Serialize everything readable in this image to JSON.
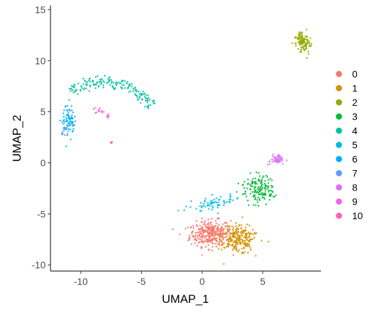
{
  "chart_data": {
    "type": "scatter",
    "title": "",
    "xlabel": "UMAP_1",
    "ylabel": "UMAP_2",
    "xlim": [
      -12.5,
      9.8
    ],
    "ylim": [
      -10.6,
      15.4
    ],
    "x_ticks": [
      -10,
      -5,
      0,
      5
    ],
    "y_ticks": [
      -10,
      -5,
      0,
      5,
      10,
      15
    ],
    "grid": false,
    "legend_position": "right",
    "point_style": "small plus marks",
    "series": [
      {
        "name": "0",
        "color": "#F8766D",
        "n": 320,
        "shape": "ellipse",
        "center": [
          0.7,
          -6.9
        ],
        "spread": [
          1.6,
          1.1
        ],
        "angle": 0.1
      },
      {
        "name": "1",
        "color": "#D39200",
        "n": 240,
        "shape": "ellipse",
        "center": [
          3.0,
          -7.5
        ],
        "spread": [
          1.4,
          1.2
        ],
        "angle": -0.3
      },
      {
        "name": "2",
        "color": "#93AA00",
        "n": 130,
        "shape": "ellipse",
        "center": [
          8.3,
          11.8
        ],
        "spread": [
          0.55,
          1.0
        ],
        "angle": 0.25
      },
      {
        "name": "3",
        "color": "#00BA38",
        "n": 150,
        "shape": "ellipse",
        "center": [
          4.6,
          -2.6
        ],
        "spread": [
          1.1,
          1.3
        ],
        "angle": 0.6
      },
      {
        "name": "4",
        "color": "#00C19F",
        "n": 170,
        "shape": "arc",
        "center": [
          -8.2,
          3.3
        ],
        "radius": 4.6,
        "theta": [
          0.45,
          2.2
        ],
        "width": 0.55
      },
      {
        "name": "5",
        "color": "#00B9E3",
        "n": 70,
        "shape": "ellipse",
        "center": [
          0.9,
          -4.0
        ],
        "spread": [
          1.7,
          0.6
        ],
        "angle": 0.15
      },
      {
        "name": "6",
        "color": "#00ADFA",
        "n": 80,
        "shape": "ellipse",
        "center": [
          -11.0,
          4.3
        ],
        "spread": [
          0.45,
          1.3
        ],
        "angle": 0.0
      },
      {
        "name": "7",
        "color": "#619CFF",
        "n": 10,
        "shape": "ellipse",
        "center": [
          -11.3,
          3.2
        ],
        "spread": [
          0.3,
          0.5
        ],
        "angle": 0.0
      },
      {
        "name": "8",
        "color": "#DB72FB",
        "n": 55,
        "shape": "ellipse",
        "center": [
          6.2,
          0.3
        ],
        "spread": [
          0.55,
          0.4
        ],
        "angle": 0.3
      },
      {
        "name": "9",
        "color": "#F564E3",
        "n": 20,
        "shape": "line",
        "from": [
          -8.9,
          5.4
        ],
        "to": [
          -7.7,
          4.5
        ],
        "jitter": 0.12
      },
      {
        "name": "10",
        "color": "#FF64B0",
        "n": 6,
        "shape": "ellipse",
        "center": [
          -7.5,
          2.0
        ],
        "spread": [
          0.1,
          0.1
        ],
        "angle": 0.0
      }
    ]
  }
}
